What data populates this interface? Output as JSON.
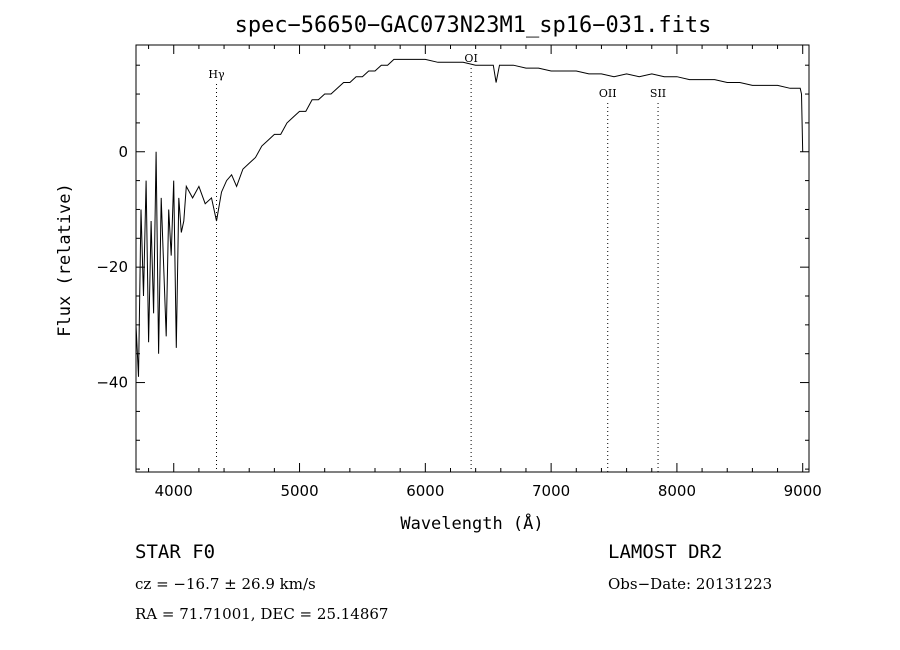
{
  "chart_data": {
    "type": "line",
    "title": "spec−56650−GAC073N23M1_sp16−031.fits",
    "xlabel": "Wavelength (Å)",
    "ylabel": "Flux (relative)",
    "xlim": [
      3700,
      9050
    ],
    "ylim": [
      -55.5,
      18.5
    ],
    "x_ticks": [
      4000,
      5000,
      6000,
      7000,
      8000,
      9000
    ],
    "y_ticks": [
      0,
      -20,
      -40
    ],
    "grid": false,
    "series": [
      {
        "x": [
          3700,
          3720,
          3740,
          3760,
          3780,
          3800,
          3820,
          3840,
          3860,
          3880,
          3900,
          3920,
          3940,
          3960,
          3980,
          4000,
          4020,
          4040,
          4060,
          4080,
          4100,
          4150,
          4200,
          4250,
          4300,
          4340,
          4380,
          4420,
          4460,
          4500,
          4550,
          4600,
          4650,
          4700,
          4750,
          4800,
          4850,
          4900,
          4950,
          5000,
          5050,
          5100,
          5150,
          5200,
          5250,
          5300,
          5350,
          5400,
          5450,
          5500,
          5550,
          5600,
          5650,
          5700,
          5750,
          5800,
          5850,
          5900,
          5950,
          6000,
          6100,
          6200,
          6300,
          6400,
          6500,
          6540,
          6563,
          6590,
          6650,
          6700,
          6800,
          6900,
          7000,
          7100,
          7200,
          7300,
          7400,
          7500,
          7600,
          7700,
          7800,
          7900,
          8000,
          8100,
          8200,
          8300,
          8400,
          8500,
          8600,
          8700,
          8800,
          8900,
          8950,
          8980,
          8990,
          9000
        ],
        "y": [
          -30,
          -39,
          -10,
          -25,
          -5,
          -33,
          -12,
          -28,
          0,
          -35,
          -8,
          -20,
          -32,
          -10,
          -18,
          -5,
          -34,
          -8,
          -14,
          -12,
          -6,
          -8,
          -6,
          -9,
          -8,
          -12,
          -7,
          -5,
          -4,
          -6,
          -3,
          -2,
          -1,
          1,
          2,
          3,
          3,
          5,
          6,
          7,
          7,
          9,
          9,
          10,
          10,
          11,
          12,
          12,
          13,
          13,
          14,
          14,
          15,
          15,
          16,
          16,
          16,
          16,
          16,
          16,
          15.5,
          15.5,
          15.5,
          15,
          15,
          15,
          12,
          15,
          15,
          15,
          14.5,
          14.5,
          14,
          14,
          14,
          13.5,
          13.5,
          13,
          13.5,
          13,
          13.5,
          13,
          13,
          12.5,
          12.5,
          12.5,
          12,
          12,
          11.5,
          11.5,
          11.5,
          11,
          11,
          11,
          10,
          0
        ]
      }
    ],
    "annotations": [
      {
        "label": "Hγ",
        "x": 4340
      },
      {
        "label": "OI",
        "x": 6364
      },
      {
        "label": "OII",
        "x": 7450
      },
      {
        "label": "SII",
        "x": 7850
      }
    ]
  },
  "info": {
    "object_class": "STAR    F0",
    "survey": "LAMOST DR2",
    "cz": "cz = −16.7 ± 26.9 km/s",
    "obs_date": "Obs−Date: 20131223",
    "coords": "RA =  71.71001, DEC =  25.14867"
  }
}
